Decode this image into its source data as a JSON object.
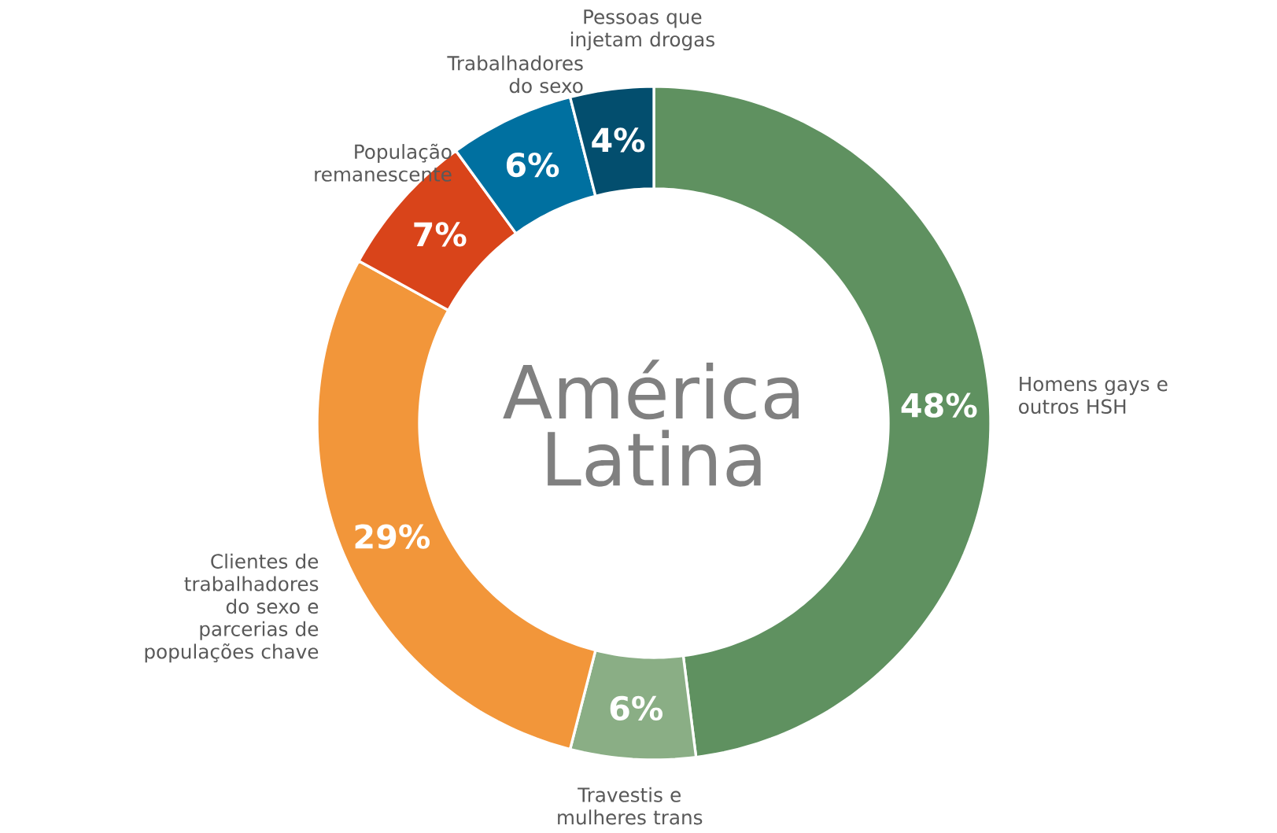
{
  "chart_data": {
    "type": "donut",
    "title": "América Latina",
    "categories": [
      "Homens gays e outros HSH",
      "Travestis e mulheres trans",
      "Clientes de trabalhadores do sexo e parcerias de populações chave",
      "População remanescente",
      "Trabalhadores do sexo",
      "Pessoas que injetam drogas"
    ],
    "values": [
      48,
      6,
      29,
      7,
      6,
      4
    ],
    "value_labels": [
      "48%",
      "6%",
      "29%",
      "7%",
      "6%",
      "4%"
    ],
    "colors": [
      "#5f9160",
      "#8aae85",
      "#f2963a",
      "#d9441a",
      "#0070a0",
      "#034e6e"
    ]
  }
}
